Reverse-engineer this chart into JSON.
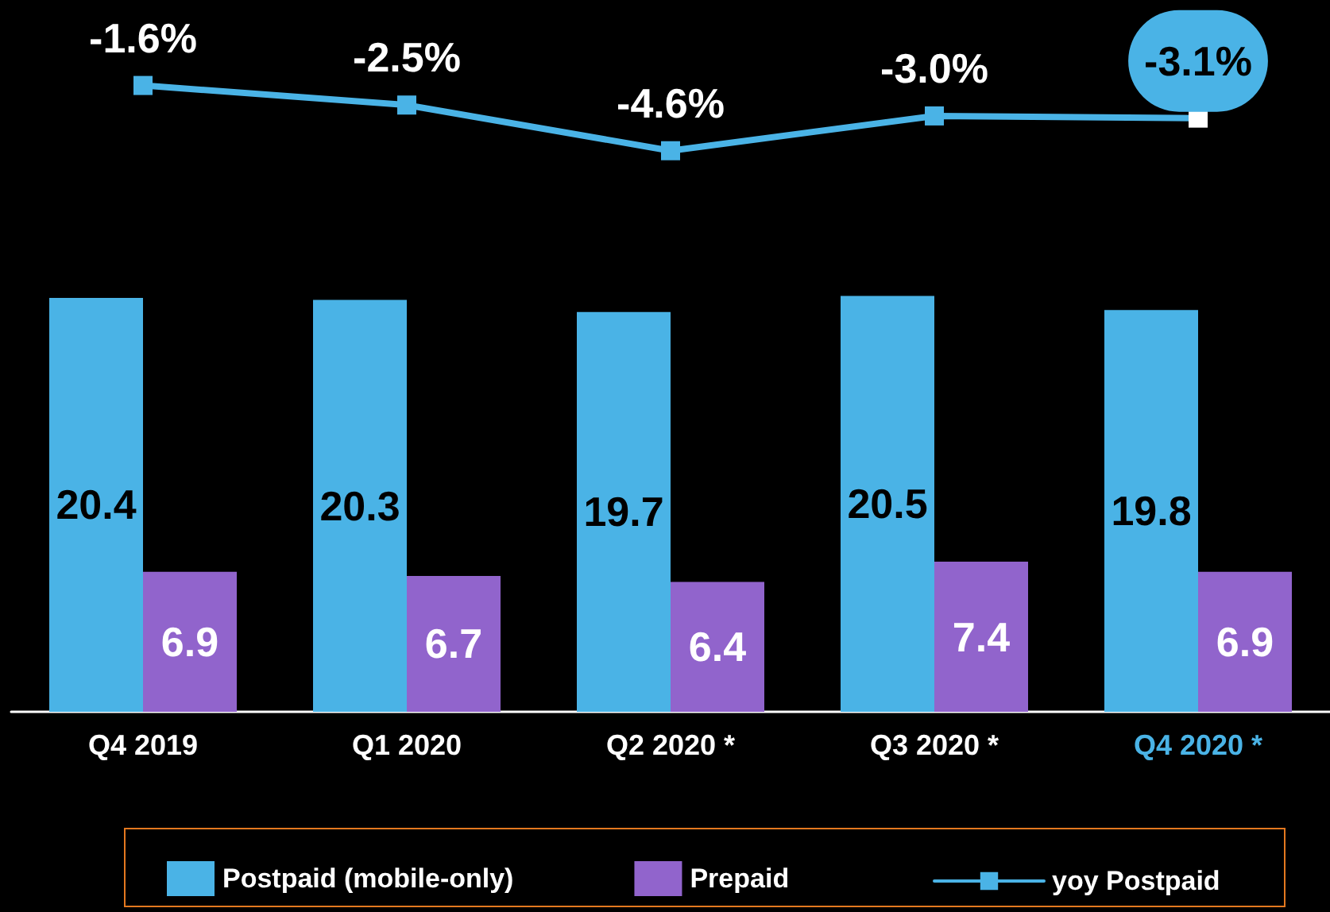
{
  "chart_data": {
    "type": "bar",
    "categories": [
      "Q4 2019",
      "Q1 2020",
      "Q2 2020 *",
      "Q3 2020 *",
      "Q4 2020 *"
    ],
    "series": [
      {
        "name": "Postpaid (mobile-only)",
        "color": "#4ab3e6",
        "values": [
          20.4,
          20.3,
          19.7,
          20.5,
          19.8
        ]
      },
      {
        "name": "Prepaid",
        "color": "#9164cc",
        "values": [
          6.9,
          6.7,
          6.4,
          7.4,
          6.9
        ]
      },
      {
        "name": "yoy Postpaid",
        "type": "line",
        "axis": "y2",
        "color": "#4ab3e6",
        "colors": [
          "#4ab3e6",
          "#4ab3e6",
          "#4ab3e6",
          "#4ab3e6",
          "#ffffff"
        ],
        "values": [
          -1.6,
          -2.5,
          -4.6,
          -3.0,
          -3.1
        ],
        "value_labels": [
          "-1.6%",
          "-2.5%",
          "-4.6%",
          "-3.0%",
          "-3.1%"
        ]
      }
    ],
    "ylim": [
      0,
      34.3
    ],
    "y2lim": [
      -30.4,
      1.6
    ],
    "data_labels": true,
    "legend": "bottom",
    "marker": "square",
    "line_style": "solid",
    "tick_labels": "x"
  }
}
